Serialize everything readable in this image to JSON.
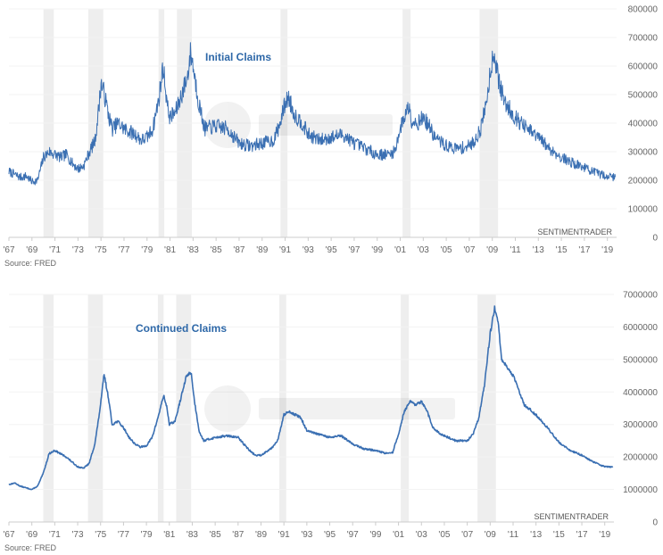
{
  "chart_data": [
    {
      "type": "line",
      "title": "Initial Claims",
      "source": "Source: FRED",
      "watermark": "SENTIMENTRADER",
      "xlim": [
        1967,
        2019.8
      ],
      "ylim": [
        0,
        800000
      ],
      "yticks": [
        0,
        100000,
        200000,
        300000,
        400000,
        500000,
        600000,
        700000,
        800000
      ],
      "ytick_labels": [
        "0",
        "100000",
        "200000",
        "300000",
        "400000",
        "500000",
        "600000",
        "700000",
        "800000"
      ],
      "xtick_labels": [
        "'67",
        "'69",
        "'71",
        "'73",
        "'75",
        "'77",
        "'79",
        "'81",
        "'83",
        "'85",
        "'87",
        "'89",
        "'91",
        "'93",
        "'95",
        "'97",
        "'99",
        "'01",
        "'03",
        "'05",
        "'07",
        "'09",
        "'11",
        "'13",
        "'15",
        "'17",
        "'19"
      ],
      "recessions": [
        [
          1970.0,
          1970.9
        ],
        [
          1973.9,
          1975.2
        ],
        [
          1980.0,
          1980.5
        ],
        [
          1981.6,
          1982.9
        ],
        [
          1990.6,
          1991.2
        ],
        [
          2001.2,
          2001.9
        ],
        [
          2007.9,
          2009.5
        ]
      ],
      "series": [
        {
          "color": "#3a6fb2",
          "x": [
            1967.0,
            1967.5,
            1968.0,
            1968.5,
            1969.0,
            1969.5,
            1970.0,
            1970.5,
            1971.0,
            1971.5,
            1972.0,
            1972.5,
            1973.0,
            1973.5,
            1974.0,
            1974.5,
            1974.8,
            1975.0,
            1975.3,
            1975.7,
            1976.0,
            1976.5,
            1977.0,
            1977.5,
            1978.0,
            1978.5,
            1979.0,
            1979.5,
            1980.0,
            1980.4,
            1980.8,
            1981.0,
            1981.5,
            1982.0,
            1982.5,
            1982.8,
            1983.0,
            1983.5,
            1984.0,
            1985.0,
            1986.0,
            1987.0,
            1988.0,
            1989.0,
            1990.0,
            1990.5,
            1991.0,
            1991.3,
            1991.7,
            1992.0,
            1992.5,
            1993.0,
            1994.0,
            1995.0,
            1996.0,
            1997.0,
            1998.0,
            1999.0,
            2000.0,
            2000.5,
            2001.0,
            2001.5,
            2001.8,
            2002.0,
            2002.5,
            2003.0,
            2003.5,
            2004.0,
            2005.0,
            2006.0,
            2007.0,
            2007.5,
            2008.0,
            2008.5,
            2009.0,
            2009.2,
            2009.5,
            2010.0,
            2011.0,
            2012.0,
            2013.0,
            2014.0,
            2015.0,
            2016.0,
            2017.0,
            2018.0,
            2019.0,
            2019.7
          ],
          "y": [
            230000,
            220000,
            210000,
            215000,
            195000,
            200000,
            280000,
            300000,
            290000,
            280000,
            290000,
            260000,
            240000,
            250000,
            300000,
            340000,
            450000,
            540000,
            500000,
            420000,
            380000,
            400000,
            380000,
            370000,
            360000,
            340000,
            350000,
            380000,
            480000,
            600000,
            450000,
            420000,
            440000,
            500000,
            560000,
            650000,
            600000,
            470000,
            380000,
            390000,
            380000,
            330000,
            320000,
            330000,
            340000,
            390000,
            470000,
            490000,
            440000,
            420000,
            400000,
            360000,
            340000,
            350000,
            360000,
            330000,
            310000,
            290000,
            290000,
            300000,
            380000,
            440000,
            460000,
            410000,
            400000,
            420000,
            390000,
            350000,
            320000,
            310000,
            320000,
            340000,
            380000,
            480000,
            630000,
            640000,
            560000,
            480000,
            420000,
            380000,
            350000,
            310000,
            280000,
            260000,
            245000,
            225000,
            215000,
            210000
          ],
          "noise": 0.07
        }
      ]
    },
    {
      "type": "line",
      "title": "Continued Claims",
      "source": "Source: FRED",
      "watermark": "SENTIMENTRADER",
      "xlim": [
        1967,
        2019.8
      ],
      "ylim": [
        0,
        7000000
      ],
      "yticks": [
        0,
        1000000,
        2000000,
        3000000,
        4000000,
        5000000,
        6000000,
        7000000
      ],
      "ytick_labels": [
        "0",
        "1000000",
        "2000000",
        "3000000",
        "4000000",
        "5000000",
        "6000000",
        "7000000"
      ],
      "xtick_labels": [
        "'67",
        "'69",
        "'71",
        "'73",
        "'75",
        "'77",
        "'79",
        "'81",
        "'83",
        "'85",
        "'87",
        "'89",
        "'91",
        "'93",
        "'95",
        "'97",
        "'99",
        "'01",
        "'03",
        "'05",
        "'07",
        "'09",
        "'11",
        "'13",
        "'15",
        "'17",
        "'19"
      ],
      "recessions": [
        [
          1970.0,
          1970.9
        ],
        [
          1973.9,
          1975.2
        ],
        [
          1980.0,
          1980.5
        ],
        [
          1981.6,
          1982.9
        ],
        [
          1990.6,
          1991.2
        ],
        [
          2001.2,
          2001.9
        ],
        [
          2007.9,
          2009.5
        ]
      ],
      "series": [
        {
          "color": "#3a6fb2",
          "x": [
            1967.0,
            1967.5,
            1968.0,
            1968.5,
            1969.0,
            1969.5,
            1970.0,
            1970.5,
            1971.0,
            1971.5,
            1972.0,
            1972.5,
            1973.0,
            1973.5,
            1974.0,
            1974.5,
            1975.0,
            1975.3,
            1975.7,
            1976.0,
            1976.5,
            1977.0,
            1977.5,
            1978.0,
            1978.5,
            1979.0,
            1979.5,
            1980.0,
            1980.5,
            1980.8,
            1981.0,
            1981.5,
            1982.0,
            1982.5,
            1982.9,
            1983.2,
            1983.6,
            1984.0,
            1985.0,
            1986.0,
            1987.0,
            1988.0,
            1988.5,
            1989.0,
            1990.0,
            1990.5,
            1991.0,
            1991.5,
            1992.0,
            1992.5,
            1993.0,
            1994.0,
            1995.0,
            1996.0,
            1997.0,
            1998.0,
            1999.0,
            2000.0,
            2000.5,
            2001.0,
            2001.5,
            2002.0,
            2002.5,
            2003.0,
            2003.5,
            2004.0,
            2004.5,
            2005.0,
            2006.0,
            2007.0,
            2007.5,
            2008.0,
            2008.5,
            2009.0,
            2009.4,
            2009.7,
            2010.0,
            2011.0,
            2012.0,
            2013.0,
            2014.0,
            2015.0,
            2016.0,
            2017.0,
            2018.0,
            2019.0,
            2019.7
          ],
          "y": [
            1150000,
            1200000,
            1100000,
            1050000,
            1000000,
            1100000,
            1500000,
            2100000,
            2200000,
            2100000,
            2000000,
            1850000,
            1700000,
            1650000,
            1800000,
            2400000,
            3600000,
            4550000,
            3800000,
            3000000,
            3100000,
            2900000,
            2600000,
            2400000,
            2300000,
            2350000,
            2600000,
            3200000,
            3900000,
            3500000,
            3000000,
            3100000,
            3800000,
            4500000,
            4600000,
            3700000,
            2800000,
            2500000,
            2600000,
            2650000,
            2600000,
            2200000,
            2050000,
            2050000,
            2300000,
            2550000,
            3300000,
            3400000,
            3300000,
            3200000,
            2800000,
            2700000,
            2600000,
            2650000,
            2400000,
            2250000,
            2200000,
            2100000,
            2150000,
            2700000,
            3400000,
            3700000,
            3600000,
            3700000,
            3400000,
            2900000,
            2750000,
            2650000,
            2500000,
            2500000,
            2700000,
            3200000,
            4200000,
            5800000,
            6600000,
            6100000,
            5000000,
            4500000,
            3600000,
            3300000,
            2900000,
            2450000,
            2200000,
            2050000,
            1850000,
            1700000,
            1700000
          ],
          "noise": 0.012
        }
      ]
    }
  ]
}
